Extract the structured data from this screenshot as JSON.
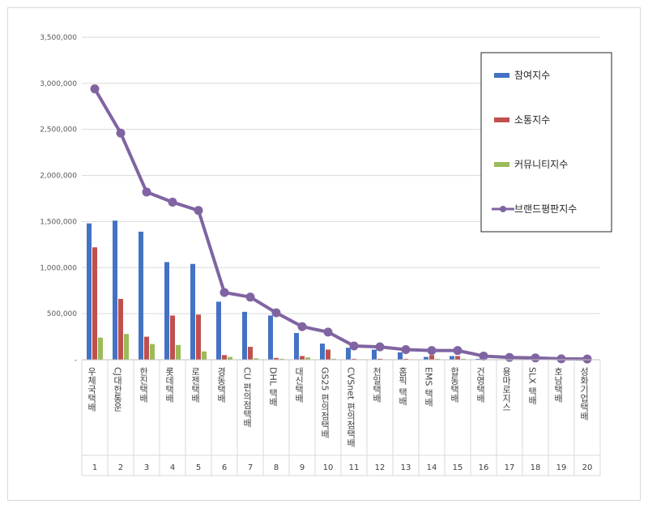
{
  "chart_data": {
    "type": "bar",
    "title": "",
    "xlabel": "",
    "ylabel": "",
    "ylim": [
      0,
      3500000
    ],
    "yticks": [
      "-",
      "500,000",
      "1,000,000",
      "1,500,000",
      "2,000,000",
      "2,500,000",
      "3,000,000",
      "3,500,000"
    ],
    "grid": true,
    "legend_position": "top-right",
    "ranks": [
      "1",
      "2",
      "3",
      "4",
      "5",
      "6",
      "7",
      "8",
      "9",
      "10",
      "11",
      "12",
      "13",
      "14",
      "15",
      "16",
      "17",
      "18",
      "19",
      "20"
    ],
    "categories": [
      "우체국택배",
      "CJ대한통운",
      "한진택배",
      "롯데택배",
      "로젠택배",
      "경동택배",
      "CU 편의점택배",
      "DHL 택배",
      "대신택배",
      "GS25 편의점택배",
      "CVSnet 편의점택배",
      "천일택배",
      "홈픽 택배",
      "EMS 택배",
      "합동택배",
      "건영택배",
      "용마로지스",
      "SLX 택배",
      "호남택배",
      "성화기업택배"
    ],
    "series": [
      {
        "name": "참여지수",
        "type": "bar",
        "color": "#4472c4",
        "values": [
          1480000,
          1510000,
          1390000,
          1060000,
          1040000,
          630000,
          520000,
          480000,
          290000,
          175000,
          130000,
          110000,
          80000,
          30000,
          40000,
          10000,
          5000,
          4000,
          3000,
          2000
        ]
      },
      {
        "name": "소통지수",
        "type": "bar",
        "color": "#c0504d",
        "values": [
          1220000,
          660000,
          250000,
          480000,
          490000,
          50000,
          140000,
          20000,
          40000,
          110000,
          10000,
          10000,
          10000,
          50000,
          40000,
          5000,
          3000,
          3000,
          2000,
          2000
        ]
      },
      {
        "name": "커뮤니티지수",
        "type": "bar",
        "color": "#9bbb59",
        "values": [
          240000,
          280000,
          170000,
          160000,
          90000,
          30000,
          15000,
          10000,
          25000,
          10000,
          5000,
          5000,
          5000,
          10000,
          10000,
          3000,
          2000,
          2000,
          2000,
          1000
        ]
      },
      {
        "name": "브랜드평판지수",
        "type": "line",
        "color": "#8064a2",
        "values": [
          2940000,
          2460000,
          1820000,
          1710000,
          1620000,
          730000,
          680000,
          510000,
          360000,
          300000,
          150000,
          140000,
          110000,
          100000,
          100000,
          40000,
          25000,
          20000,
          10000,
          8000
        ]
      }
    ]
  }
}
